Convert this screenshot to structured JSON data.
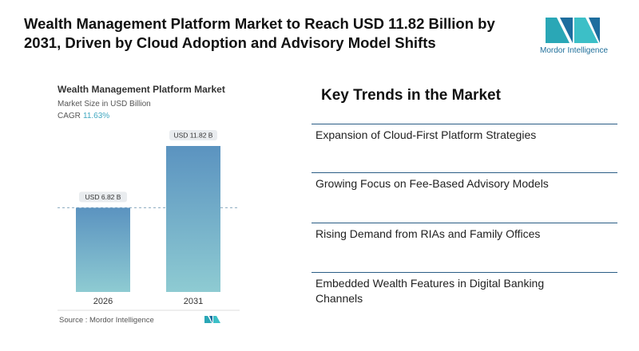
{
  "header": {
    "title": "Wealth Management Platform Market to Reach USD 11.82 Billion by 2031, Driven by Cloud Adoption and Advisory Model Shifts",
    "logo_text": "Mordor Intelligence"
  },
  "chart_data": {
    "type": "bar",
    "title": "Wealth Management Platform Market",
    "subtitle": "Market Size in USD Billion",
    "cagr_label": "CAGR",
    "cagr": "11.63%",
    "categories": [
      "2026",
      "2031"
    ],
    "values": [
      6.82,
      11.82
    ],
    "value_labels": [
      "USD 6.82 B",
      "USD 11.82 B"
    ],
    "source": "Source : Mordor Intelligence"
  },
  "key_trends": {
    "title": "Key Trends in the Market",
    "items": [
      "Expansion of Cloud-First Platform Strategies",
      "Growing Focus on Fee-Based Advisory Models",
      "Rising Demand from RIAs and Family Offices",
      "Embedded Wealth Features in Digital Banking Channels"
    ]
  }
}
